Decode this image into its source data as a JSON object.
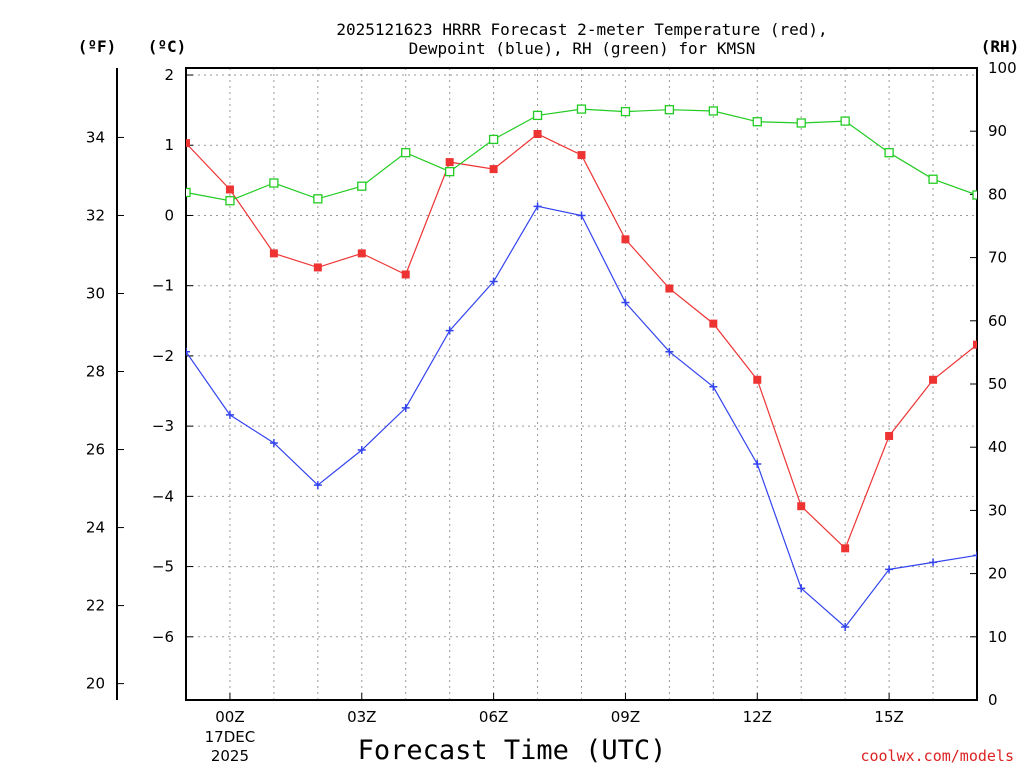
{
  "chart_data": {
    "type": "line",
    "title_line1": "2025121623 HRRR Forecast 2-meter Temperature (red),",
    "title_line2": "Dewpoint (blue), RH (green) for KMSN",
    "xlabel": "Forecast Time (UTC)",
    "credit": "coolwx.com/models",
    "unit_left_f": "(ºF)",
    "unit_left_c": "(ºC)",
    "unit_right_rh": "(RH)",
    "x_hours": [
      -1,
      0,
      1,
      2,
      3,
      4,
      5,
      6,
      7,
      8,
      9,
      10,
      11,
      12,
      13,
      14,
      15,
      16,
      17
    ],
    "xlim": [
      -1,
      17
    ],
    "x_ticks": [
      {
        "hour": 0,
        "label": "00Z",
        "sub1": "17DEC",
        "sub2": "2025"
      },
      {
        "hour": 3,
        "label": "03Z"
      },
      {
        "hour": 6,
        "label": "06Z"
      },
      {
        "hour": 9,
        "label": "09Z"
      },
      {
        "hour": 12,
        "label": "12Z"
      },
      {
        "hour": 15,
        "label": "15Z"
      }
    ],
    "celsius_axis": {
      "ylim": [
        -6.9,
        2.1
      ],
      "ticks": [
        2,
        1,
        0,
        -1,
        -2,
        -3,
        -4,
        -5,
        -6
      ],
      "tick_labels": [
        "2",
        "1",
        "0",
        "−1",
        "−2",
        "−3",
        "−4",
        "−5",
        "−6"
      ]
    },
    "fahrenheit_axis": {
      "ticks": [
        34,
        32,
        30,
        28,
        26,
        24,
        22,
        20
      ]
    },
    "rh_axis": {
      "ylim": [
        0,
        100
      ],
      "ticks": [
        100,
        90,
        80,
        70,
        60,
        50,
        40,
        30,
        20,
        10,
        0
      ]
    },
    "series": [
      {
        "name": "Temperature",
        "color": "#ee3333",
        "marker": "filled-square",
        "axis": "celsius",
        "values": [
          1.03,
          0.37,
          -0.54,
          -0.74,
          -0.54,
          -0.84,
          0.76,
          0.66,
          1.16,
          0.86,
          -0.34,
          -1.04,
          -1.54,
          -2.34,
          -4.14,
          -4.74,
          -3.14,
          -2.34,
          -1.84
        ]
      },
      {
        "name": "Dewpoint",
        "color": "#3344ee",
        "marker": "plus",
        "axis": "celsius",
        "values": [
          -1.94,
          -2.84,
          -3.24,
          -3.84,
          -3.34,
          -2.74,
          -1.64,
          -0.94,
          0.13,
          0.0,
          -1.24,
          -1.94,
          -2.44,
          -3.54,
          -5.31,
          -5.86,
          -5.04,
          -4.94,
          -4.84
        ]
      },
      {
        "name": "RH",
        "color": "#22cc22",
        "marker": "open-square",
        "axis": "rh",
        "values": [
          80.3,
          79.0,
          81.8,
          79.3,
          81.3,
          86.6,
          83.6,
          88.7,
          92.5,
          93.5,
          93.1,
          93.4,
          93.2,
          91.5,
          91.3,
          91.6,
          86.6,
          82.4,
          79.9
        ]
      }
    ]
  }
}
